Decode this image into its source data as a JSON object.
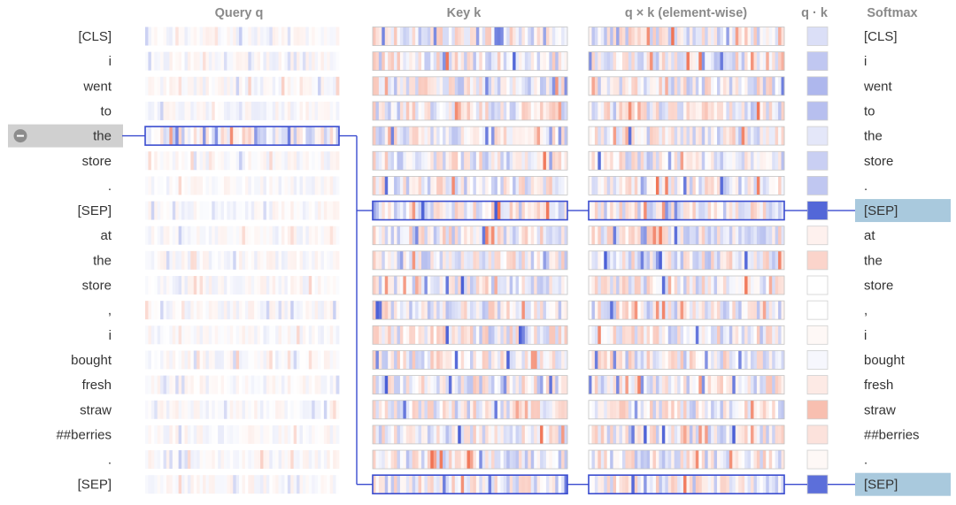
{
  "headers": {
    "query": "Query q",
    "key": "Key k",
    "product": "q × k (element-wise)",
    "dot": "q · k",
    "softmax": "Softmax"
  },
  "left_tokens": [
    "[CLS]",
    "i",
    "went",
    "to",
    "the",
    "store",
    ".",
    "[SEP]",
    "at",
    "the",
    "store",
    ",",
    "i",
    "bought",
    "fresh",
    "straw",
    "##berries",
    ".",
    "[SEP]"
  ],
  "right_tokens": [
    "[CLS]",
    "i",
    "went",
    "to",
    "the",
    "store",
    ".",
    "[SEP]",
    "at",
    "the",
    "store",
    ",",
    "i",
    "bought",
    "fresh",
    "straw",
    "##berries",
    ".",
    "[SEP]"
  ],
  "selected_query_index": 4,
  "highlighted_key_indices": [
    7,
    18
  ],
  "dot_scores": [
    0.2,
    0.35,
    0.45,
    0.4,
    0.15,
    0.3,
    0.35,
    0.95,
    -0.1,
    -0.3,
    0.0,
    0.0,
    -0.05,
    0.05,
    -0.15,
    -0.45,
    -0.2,
    -0.05,
    0.9
  ],
  "colors": {
    "positive": "#4a5fd6",
    "negative": "#f07050",
    "selection": "#3a4ccf",
    "softmax_highlight": "#a9c9dd",
    "header": "#8a8a8a",
    "token_highlight": "#d0d0d0"
  }
}
